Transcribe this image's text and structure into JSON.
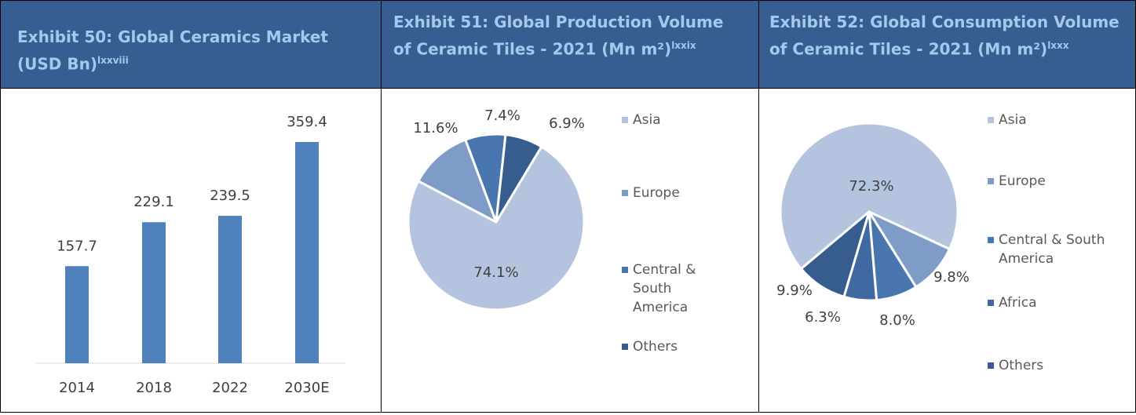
{
  "chart_data": [
    {
      "type": "bar",
      "title": "Exhibit 50: Global Ceramics Market (USD Bn)",
      "title_note": "lxxviii",
      "categories": [
        "2014",
        "2018",
        "2022",
        "2030E"
      ],
      "values": [
        157.7,
        229.1,
        239.5,
        359.4
      ],
      "color": "#4f81bd"
    },
    {
      "type": "pie",
      "title": "Exhibit 51: Global Production Volume of Ceramic Tiles - 2021 (Mn m²)",
      "title_note": "lxxix",
      "categories": [
        "Asia",
        "Europe",
        "Central & South America",
        "Others"
      ],
      "values": [
        74.1,
        11.6,
        7.4,
        6.9
      ],
      "value_labels": [
        "74.1%",
        "11.6%",
        "7.4%",
        "6.9%"
      ],
      "colors": [
        "#b4c4de",
        "#7f9cc8",
        "#4a76b0",
        "#375d8f"
      ]
    },
    {
      "type": "pie",
      "title": "Exhibit 52: Global Consumption Volume of Ceramic Tiles - 2021 (Mn m²)",
      "title_note": "lxxx",
      "categories": [
        "Asia",
        "Europe",
        "Central & South America",
        "Africa",
        "Others"
      ],
      "values": [
        72.3,
        9.8,
        8.0,
        6.3,
        9.9
      ],
      "value_labels": [
        "72.3%",
        "9.8%",
        "8.0%",
        "6.3%",
        "9.9%"
      ],
      "colors": [
        "#b4c4de",
        "#7f9cc8",
        "#4a76b0",
        "#3f69a0",
        "#375d8f"
      ]
    }
  ]
}
